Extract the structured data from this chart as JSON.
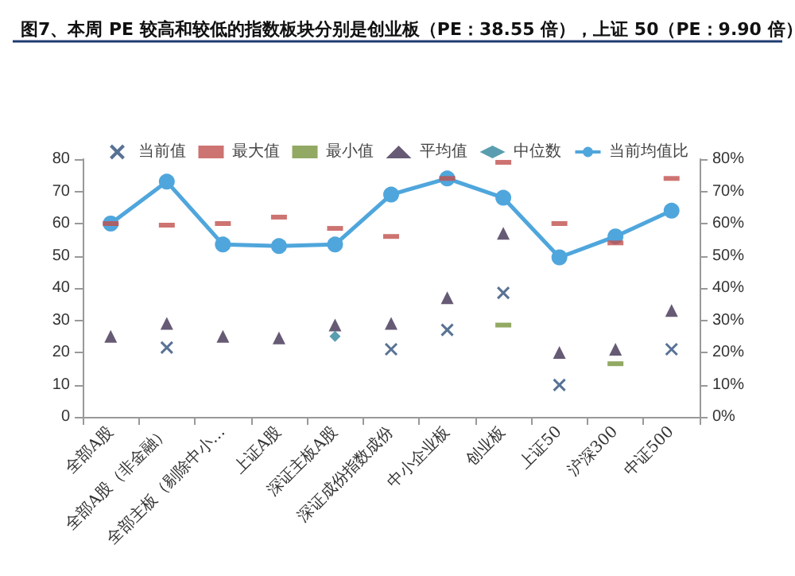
{
  "chart_data": {
    "type": "scatter",
    "title": "图7、本周 PE 较高和较低的指数板块分别是创业板（PE：38.55 倍），上证 50（PE：9.90 倍）",
    "categories": [
      "全部A股",
      "全部A股（非金融）",
      "全部主板（剔除中小…",
      "上证A股",
      "深证主板A股",
      "深证成份指数成份",
      "中小企业板",
      "创业板",
      "上证50",
      "沪深300",
      "中证500"
    ],
    "series": [
      {
        "name": "当前值",
        "color": "#2e4f7a",
        "marker": "cross",
        "values": [
          null,
          21.5,
          null,
          null,
          null,
          21,
          27,
          38.5,
          9.9,
          null,
          21
        ]
      },
      {
        "name": "最大值",
        "color": "#c0504d",
        "marker": "square",
        "values": [
          60,
          59.5,
          60,
          62,
          58.5,
          56,
          74,
          79,
          60,
          54,
          74
        ]
      },
      {
        "name": "最小值",
        "color": "#77933c",
        "marker": "square",
        "values": [
          null,
          null,
          null,
          null,
          null,
          null,
          null,
          28.5,
          null,
          16.5,
          null
        ]
      },
      {
        "name": "平均值",
        "color": "#403152",
        "marker": "triangle",
        "values": [
          25,
          29,
          25,
          24.5,
          28.5,
          29,
          37,
          57,
          20,
          21,
          33
        ]
      },
      {
        "name": "中位数",
        "color": "#31859c",
        "marker": "diamond",
        "values": [
          null,
          null,
          null,
          null,
          25,
          null,
          null,
          null,
          null,
          null,
          null
        ]
      },
      {
        "name": "当前均值比",
        "color": "#4fa6dc",
        "type": "line",
        "axis": "y2",
        "marker": "circle",
        "line_style": "solid",
        "values": [
          60,
          73,
          53.5,
          53,
          53.5,
          69,
          74,
          68,
          49.5,
          56,
          64
        ]
      }
    ],
    "ylim": [
      0,
      80
    ],
    "yticks": [
      0,
      10,
      20,
      30,
      40,
      50,
      60,
      70,
      80
    ],
    "y2lim": [
      0,
      80
    ],
    "y2ticks": [
      {
        "value": 0,
        "label": "0%"
      },
      {
        "value": 10,
        "label": "10%"
      },
      {
        "value": 20,
        "label": "20%"
      },
      {
        "value": 30,
        "label": "30%"
      },
      {
        "value": 40,
        "label": "40%"
      },
      {
        "value": 50,
        "label": "50%"
      },
      {
        "value": 60,
        "label": "60%"
      },
      {
        "value": 70,
        "label": "70%"
      },
      {
        "value": 80,
        "label": "80%"
      }
    ],
    "legend": "top",
    "grid": false
  }
}
